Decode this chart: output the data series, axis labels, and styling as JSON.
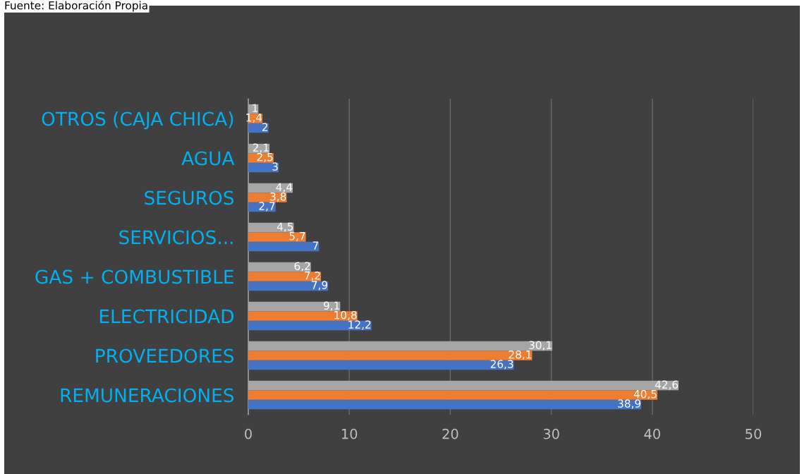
{
  "chart_data": {
    "type": "bar",
    "orientation": "horizontal",
    "annotations": [
      "Fuente: Elaboración Propia"
    ],
    "categories": [
      "OTROS (CAJA CHICA)",
      "AGUA",
      "SEGUROS",
      "SERVICIOS...",
      "GAS + COMBUSTIBLE",
      "ELECTRICIDAD",
      "PROVEEDORES",
      "REMUNERACIONES"
    ],
    "series": [
      {
        "color": "#4472c4",
        "values": [
          2,
          3,
          2.7,
          7,
          7.9,
          12.2,
          26.3,
          38.9
        ],
        "value_labels": [
          "2",
          "3",
          "2,7",
          "7",
          "7,9",
          "12,2",
          "26,3",
          "38,9"
        ]
      },
      {
        "color": "#ed7d31",
        "values": [
          1.4,
          2.5,
          3.8,
          5.7,
          7.2,
          10.8,
          28.1,
          40.5
        ],
        "value_labels": [
          "1,4",
          "2,5",
          "3,8",
          "5,7",
          "7,2",
          "10,8",
          "28,1",
          "40,5"
        ]
      },
      {
        "color": "#a5a5a5",
        "values": [
          1,
          2.1,
          4.4,
          4.5,
          6.2,
          9.1,
          30.1,
          42.6
        ],
        "value_labels": [
          "1",
          "2,1",
          "4,4",
          "4,5",
          "6,2",
          "9,1",
          "30,1",
          "42,6"
        ]
      }
    ],
    "xlim": [
      0,
      50
    ],
    "xticks": [
      0,
      10,
      20,
      30,
      40,
      50
    ],
    "grid": "x",
    "legend": false
  }
}
